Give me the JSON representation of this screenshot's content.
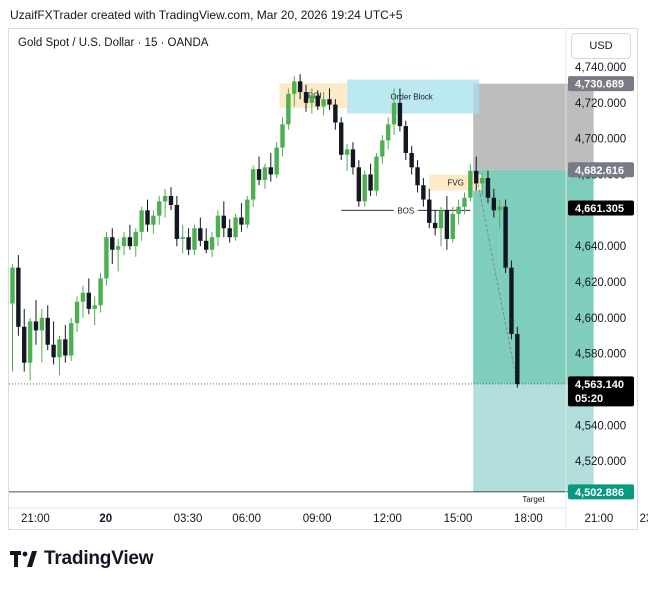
{
  "header": {
    "credit_text": "UzaifFXTrader created with TradingView.com, Mar 20, 2026 19:24 UTC+5",
    "symbol_title": "Gold Spot / U.S. Dollar · 15 · OANDA",
    "currency_button": "USD"
  },
  "branding": {
    "logo_text": "TradingView",
    "logo_icon": "tradingview-logo-icon"
  },
  "colors": {
    "up": "#4caf50",
    "down": "#131722",
    "tp_zone": "#7fcdbb",
    "tp_zone_extended": "#b2dfdb",
    "sl_zone": "#bdbdbd",
    "poi_zone": "#fdebc8",
    "order_block": "#a6e1ec",
    "fvg_zone": "#fdebc8",
    "last_price_tag": "#000000",
    "target_tag": "#089981",
    "stop_tag": "#787b86"
  },
  "chart_data": {
    "type": "candlestick",
    "symbol": "Gold Spot / U.S. Dollar",
    "interval": "15",
    "exchange": "OANDA",
    "ylim": [
      4495,
      4745
    ],
    "y_ticks": [
      4520,
      4540,
      4560,
      4580,
      4600,
      4620,
      4640,
      4660,
      4680,
      4700,
      4720,
      4740
    ],
    "y_tick_labels": [
      "4,520.000",
      "4,540.000",
      "4,560.000",
      "4,580.000",
      "4,600.000",
      "4,620.000",
      "4,640.000",
      "4,660.000",
      "4,680.000",
      "4,700.000",
      "4,720.000",
      "4,740.000"
    ],
    "x_ticks": [
      {
        "label": "21:00",
        "index": 1
      },
      {
        "label": "20",
        "index": 13
      },
      {
        "label": "03:30",
        "index": 27
      },
      {
        "label": "06:00",
        "index": 37
      },
      {
        "label": "09:00",
        "index": 49
      },
      {
        "label": "12:00",
        "index": 61
      },
      {
        "label": "15:00",
        "index": 73
      },
      {
        "label": "18:00",
        "index": 85
      },
      {
        "label": "21:00",
        "index": 97
      },
      {
        "label": "23",
        "index": 105
      }
    ],
    "candles": [
      {
        "o": 4608,
        "h": 4630,
        "l": 4570,
        "c": 4628
      },
      {
        "o": 4628,
        "h": 4635,
        "l": 4590,
        "c": 4595
      },
      {
        "o": 4595,
        "h": 4605,
        "l": 4570,
        "c": 4575
      },
      {
        "o": 4575,
        "h": 4600,
        "l": 4565,
        "c": 4598
      },
      {
        "o": 4598,
        "h": 4610,
        "l": 4585,
        "c": 4593
      },
      {
        "o": 4593,
        "h": 4605,
        "l": 4575,
        "c": 4600
      },
      {
        "o": 4600,
        "h": 4607,
        "l": 4582,
        "c": 4585
      },
      {
        "o": 4585,
        "h": 4598,
        "l": 4574,
        "c": 4578
      },
      {
        "o": 4578,
        "h": 4590,
        "l": 4568,
        "c": 4588
      },
      {
        "o": 4588,
        "h": 4596,
        "l": 4575,
        "c": 4579
      },
      {
        "o": 4579,
        "h": 4600,
        "l": 4576,
        "c": 4597
      },
      {
        "o": 4597,
        "h": 4612,
        "l": 4592,
        "c": 4609
      },
      {
        "o": 4609,
        "h": 4618,
        "l": 4600,
        "c": 4614
      },
      {
        "o": 4614,
        "h": 4622,
        "l": 4602,
        "c": 4605
      },
      {
        "o": 4605,
        "h": 4612,
        "l": 4596,
        "c": 4607
      },
      {
        "o": 4607,
        "h": 4625,
        "l": 4603,
        "c": 4622
      },
      {
        "o": 4622,
        "h": 4648,
        "l": 4618,
        "c": 4645
      },
      {
        "o": 4645,
        "h": 4650,
        "l": 4630,
        "c": 4638
      },
      {
        "o": 4638,
        "h": 4644,
        "l": 4626,
        "c": 4640
      },
      {
        "o": 4640,
        "h": 4648,
        "l": 4635,
        "c": 4645
      },
      {
        "o": 4645,
        "h": 4652,
        "l": 4638,
        "c": 4640
      },
      {
        "o": 4640,
        "h": 4650,
        "l": 4634,
        "c": 4648
      },
      {
        "o": 4648,
        "h": 4662,
        "l": 4643,
        "c": 4660
      },
      {
        "o": 4660,
        "h": 4666,
        "l": 4648,
        "c": 4652
      },
      {
        "o": 4652,
        "h": 4660,
        "l": 4647,
        "c": 4657
      },
      {
        "o": 4657,
        "h": 4668,
        "l": 4652,
        "c": 4665
      },
      {
        "o": 4665,
        "h": 4672,
        "l": 4656,
        "c": 4668
      },
      {
        "o": 4668,
        "h": 4673,
        "l": 4660,
        "c": 4663
      },
      {
        "o": 4663,
        "h": 4668,
        "l": 4640,
        "c": 4644
      },
      {
        "o": 4644,
        "h": 4652,
        "l": 4636,
        "c": 4645
      },
      {
        "o": 4645,
        "h": 4650,
        "l": 4635,
        "c": 4638
      },
      {
        "o": 4638,
        "h": 4652,
        "l": 4635,
        "c": 4650
      },
      {
        "o": 4650,
        "h": 4656,
        "l": 4640,
        "c": 4643
      },
      {
        "o": 4643,
        "h": 4650,
        "l": 4636,
        "c": 4638
      },
      {
        "o": 4638,
        "h": 4648,
        "l": 4634,
        "c": 4645
      },
      {
        "o": 4645,
        "h": 4660,
        "l": 4640,
        "c": 4657
      },
      {
        "o": 4657,
        "h": 4665,
        "l": 4645,
        "c": 4650
      },
      {
        "o": 4650,
        "h": 4655,
        "l": 4642,
        "c": 4645
      },
      {
        "o": 4645,
        "h": 4658,
        "l": 4643,
        "c": 4656
      },
      {
        "o": 4656,
        "h": 4664,
        "l": 4648,
        "c": 4652
      },
      {
        "o": 4652,
        "h": 4668,
        "l": 4650,
        "c": 4666
      },
      {
        "o": 4666,
        "h": 4685,
        "l": 4662,
        "c": 4683
      },
      {
        "o": 4683,
        "h": 4690,
        "l": 4674,
        "c": 4677
      },
      {
        "o": 4677,
        "h": 4686,
        "l": 4672,
        "c": 4684
      },
      {
        "o": 4684,
        "h": 4692,
        "l": 4676,
        "c": 4680
      },
      {
        "o": 4680,
        "h": 4698,
        "l": 4678,
        "c": 4695
      },
      {
        "o": 4695,
        "h": 4712,
        "l": 4690,
        "c": 4708
      },
      {
        "o": 4708,
        "h": 4728,
        "l": 4705,
        "c": 4725
      },
      {
        "o": 4725,
        "h": 4735,
        "l": 4718,
        "c": 4732
      },
      {
        "o": 4732,
        "h": 4736,
        "l": 4722,
        "c": 4726
      },
      {
        "o": 4726,
        "h": 4730,
        "l": 4715,
        "c": 4720
      },
      {
        "o": 4720,
        "h": 4728,
        "l": 4714,
        "c": 4724
      },
      {
        "o": 4724,
        "h": 4727,
        "l": 4716,
        "c": 4718
      },
      {
        "o": 4718,
        "h": 4726,
        "l": 4713,
        "c": 4722
      },
      {
        "o": 4722,
        "h": 4728,
        "l": 4716,
        "c": 4719
      },
      {
        "o": 4719,
        "h": 4722,
        "l": 4705,
        "c": 4709
      },
      {
        "o": 4709,
        "h": 4712,
        "l": 4688,
        "c": 4691
      },
      {
        "o": 4691,
        "h": 4697,
        "l": 4682,
        "c": 4694
      },
      {
        "o": 4694,
        "h": 4698,
        "l": 4680,
        "c": 4684
      },
      {
        "o": 4684,
        "h": 4688,
        "l": 4662,
        "c": 4665
      },
      {
        "o": 4665,
        "h": 4682,
        "l": 4662,
        "c": 4680
      },
      {
        "o": 4680,
        "h": 4686,
        "l": 4668,
        "c": 4671
      },
      {
        "o": 4671,
        "h": 4692,
        "l": 4668,
        "c": 4690
      },
      {
        "o": 4690,
        "h": 4702,
        "l": 4686,
        "c": 4699
      },
      {
        "o": 4699,
        "h": 4712,
        "l": 4694,
        "c": 4708
      },
      {
        "o": 4708,
        "h": 4728,
        "l": 4702,
        "c": 4720
      },
      {
        "o": 4720,
        "h": 4728,
        "l": 4704,
        "c": 4707
      },
      {
        "o": 4707,
        "h": 4710,
        "l": 4688,
        "c": 4692
      },
      {
        "o": 4692,
        "h": 4696,
        "l": 4680,
        "c": 4684
      },
      {
        "o": 4684,
        "h": 4688,
        "l": 4670,
        "c": 4674
      },
      {
        "o": 4674,
        "h": 4678,
        "l": 4662,
        "c": 4666
      },
      {
        "o": 4666,
        "h": 4672,
        "l": 4650,
        "c": 4653
      },
      {
        "o": 4653,
        "h": 4660,
        "l": 4646,
        "c": 4650
      },
      {
        "o": 4650,
        "h": 4662,
        "l": 4640,
        "c": 4660
      },
      {
        "o": 4660,
        "h": 4668,
        "l": 4638,
        "c": 4644
      },
      {
        "o": 4644,
        "h": 4662,
        "l": 4642,
        "c": 4658
      },
      {
        "o": 4658,
        "h": 4666,
        "l": 4652,
        "c": 4662
      },
      {
        "o": 4662,
        "h": 4670,
        "l": 4658,
        "c": 4667
      },
      {
        "o": 4667,
        "h": 4686,
        "l": 4665,
        "c": 4682
      },
      {
        "o": 4682,
        "h": 4690,
        "l": 4671,
        "c": 4675
      },
      {
        "o": 4675,
        "h": 4681,
        "l": 4668,
        "c": 4678
      },
      {
        "o": 4678,
        "h": 4682,
        "l": 4664,
        "c": 4667
      },
      {
        "o": 4667,
        "h": 4672,
        "l": 4656,
        "c": 4660
      },
      {
        "o": 4660,
        "h": 4666,
        "l": 4650,
        "c": 4662
      },
      {
        "o": 4662,
        "h": 4666,
        "l": 4625,
        "c": 4628
      },
      {
        "o": 4628,
        "h": 4632,
        "l": 4588,
        "c": 4591
      },
      {
        "o": 4591,
        "h": 4595,
        "l": 4561,
        "c": 4563
      }
    ],
    "annotations": {
      "poi": {
        "label": "POI",
        "start": 46,
        "end": 57,
        "y1": 4717,
        "y2": 4731
      },
      "order_block": {
        "label": "Order Block",
        "start": 57,
        "end": 79,
        "y1": 4714,
        "y2": 4733
      },
      "fvg": {
        "label": "FVG",
        "start": 71,
        "end": 80,
        "y1": 4671,
        "y2": 4680
      },
      "bos": {
        "label": "BOS",
        "start": 56,
        "end": 78,
        "y": 4660
      },
      "position": {
        "start": 79,
        "end": 99,
        "entry": 4682.616,
        "stop": 4730.689,
        "target": 4502.886,
        "current": 4563.14
      },
      "target_label": "Target"
    },
    "price_tags": {
      "stop": "4,730.689",
      "entry": "4,682.616",
      "hover": "4,661.305",
      "last": "4,563.140",
      "countdown": "05:20",
      "target": "4,502.886"
    }
  }
}
